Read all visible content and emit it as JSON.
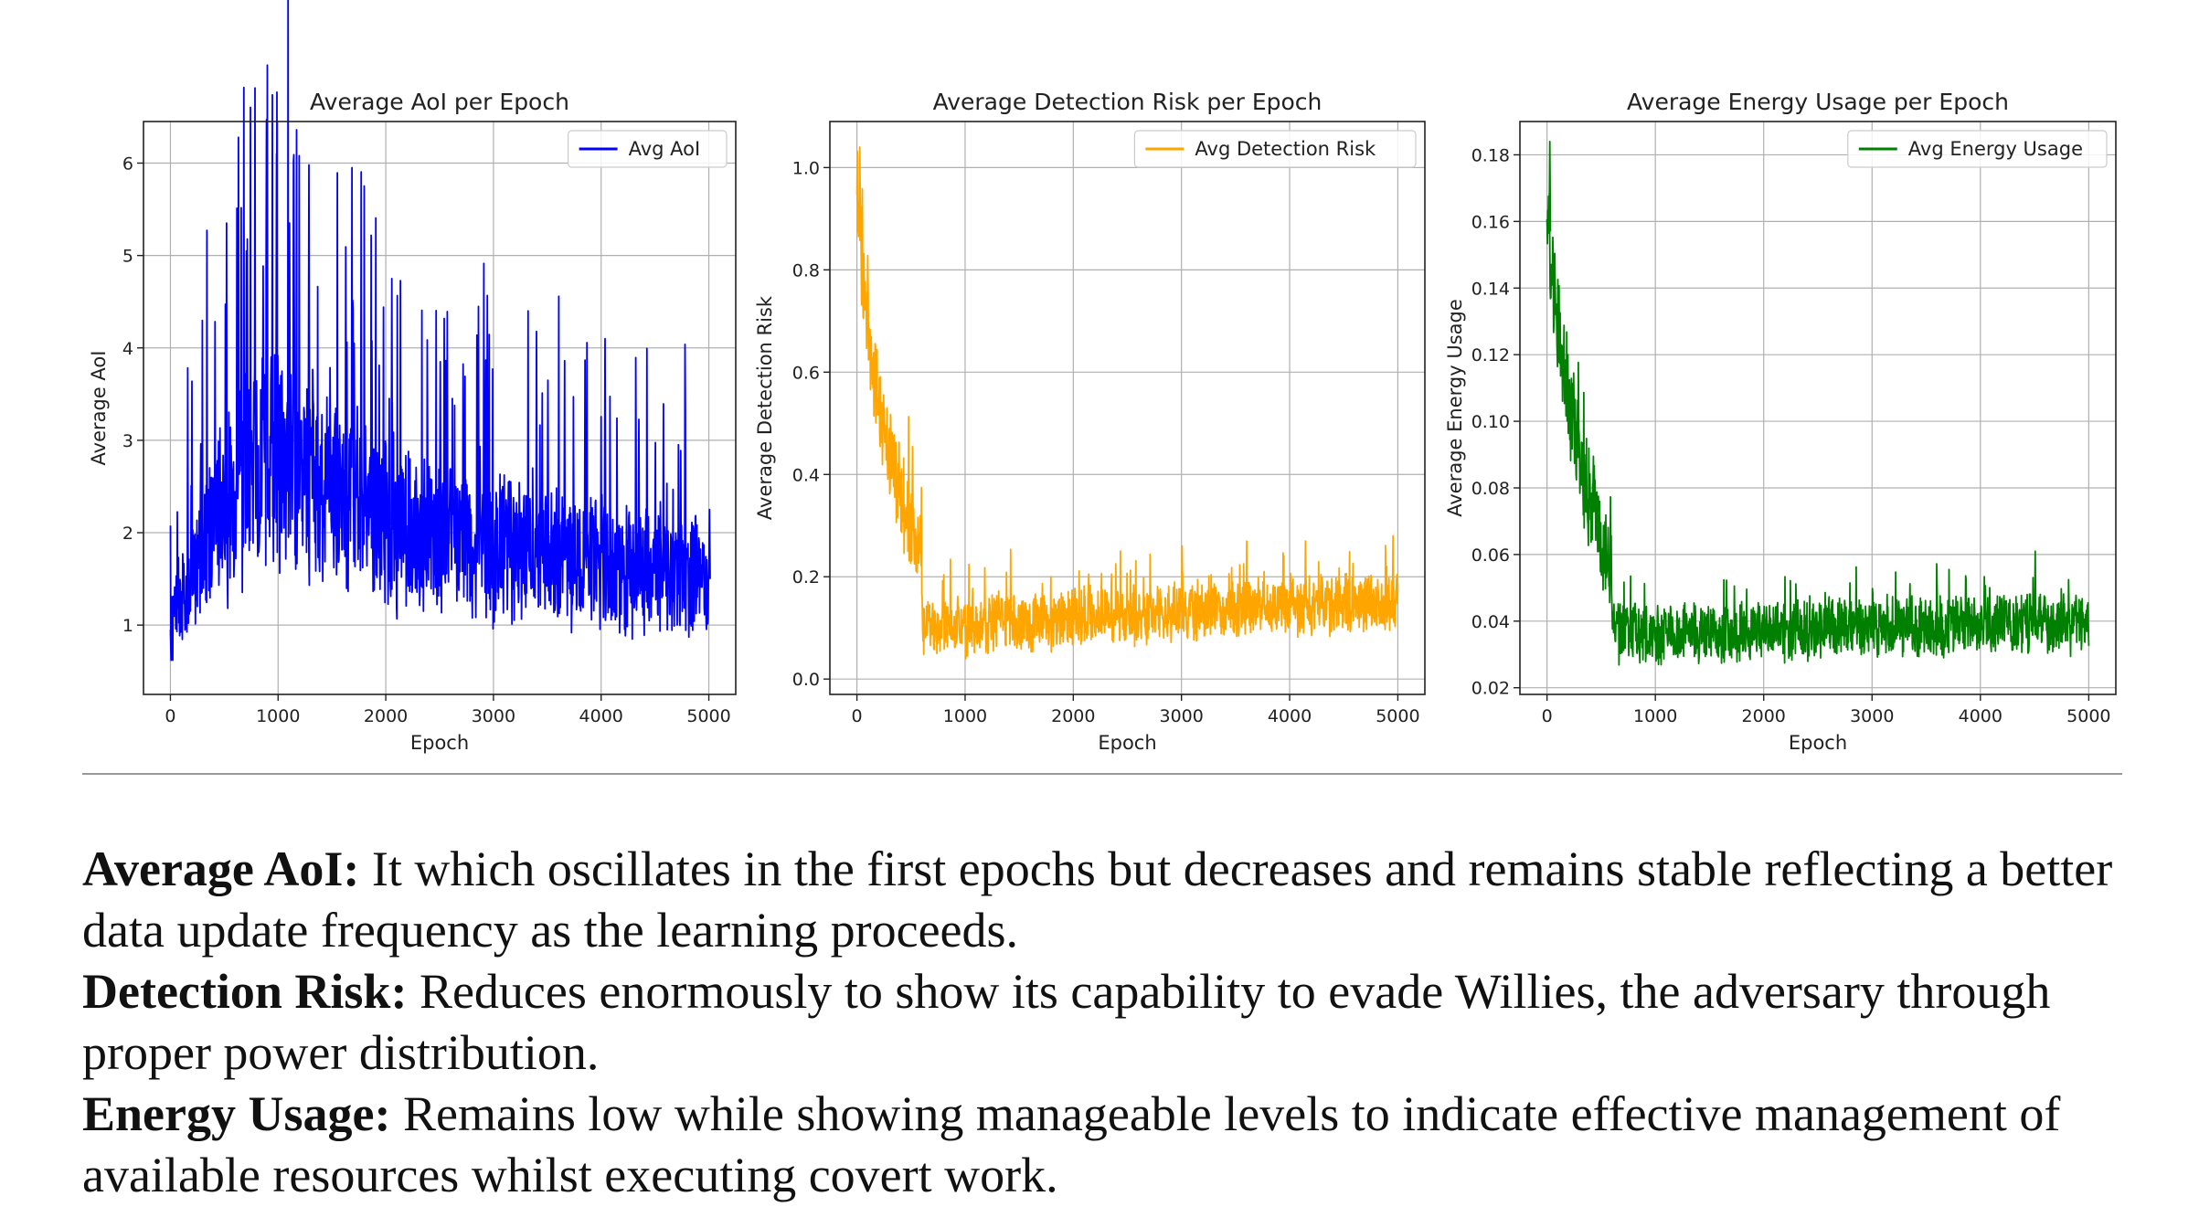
{
  "chart_data": [
    {
      "type": "line",
      "title": "Average AoI per Epoch",
      "xlabel": "Epoch",
      "ylabel": "Average AoI",
      "xlim": [
        -250,
        5250
      ],
      "ylim": [
        0.25,
        6.45
      ],
      "xticks": [
        0,
        1000,
        2000,
        3000,
        4000,
        5000
      ],
      "yticks": [
        1,
        2,
        3,
        4,
        5,
        6
      ],
      "ytick_decimals": 0,
      "grid": true,
      "legend": "top-right",
      "series": [
        {
          "name": "Avg AoI",
          "color": "#0000ff"
        }
      ],
      "trend_points": [
        [
          0,
          0.95
        ],
        [
          200,
          1.6
        ],
        [
          500,
          2.2
        ],
        [
          800,
          2.9
        ],
        [
          1000,
          2.9
        ],
        [
          1200,
          2.7
        ],
        [
          1500,
          2.4
        ],
        [
          2000,
          2.1
        ],
        [
          2500,
          1.9
        ],
        [
          3000,
          1.8
        ],
        [
          3500,
          1.75
        ],
        [
          4000,
          1.7
        ],
        [
          4500,
          1.55
        ],
        [
          5000,
          1.5
        ]
      ],
      "peaks": [
        [
          980,
          6.1
        ],
        [
          1280,
          5.98
        ],
        [
          1100,
          5.35
        ],
        [
          700,
          5.05
        ],
        [
          2050,
          4.75
        ],
        [
          4030,
          4.1
        ],
        [
          1700,
          4.05
        ],
        [
          2500,
          3.85
        ],
        [
          3500,
          3.65
        ],
        [
          5000,
          2.25
        ],
        [
          0,
          0.62
        ]
      ]
    },
    {
      "type": "line",
      "title": "Average Detection Risk per Epoch",
      "xlabel": "Epoch",
      "ylabel": "Average Detection Risk",
      "xlim": [
        -250,
        5250
      ],
      "ylim": [
        -0.03,
        1.09
      ],
      "xticks": [
        0,
        1000,
        2000,
        3000,
        4000,
        5000
      ],
      "yticks": [
        0.0,
        0.2,
        0.4,
        0.6,
        0.8,
        1.0
      ],
      "ytick_decimals": 1,
      "grid": true,
      "legend": "top-right",
      "series": [
        {
          "name": "Avg Detection Risk",
          "color": "#ffa500"
        }
      ],
      "trend_points": [
        [
          0,
          0.95
        ],
        [
          100,
          0.68
        ],
        [
          200,
          0.55
        ],
        [
          300,
          0.45
        ],
        [
          400,
          0.36
        ],
        [
          500,
          0.3
        ],
        [
          590,
          0.24
        ],
        [
          610,
          0.11
        ],
        [
          1000,
          0.105
        ],
        [
          2000,
          0.12
        ],
        [
          3000,
          0.13
        ],
        [
          4000,
          0.14
        ],
        [
          5000,
          0.15
        ]
      ],
      "peaks": [
        [
          20,
          1.04
        ],
        [
          3000,
          0.26
        ],
        [
          4950,
          0.28
        ],
        [
          1000,
          0.04
        ]
      ]
    },
    {
      "type": "line",
      "title": "Average Energy Usage per Epoch",
      "xlabel": "Epoch",
      "ylabel": "Average Energy Usage",
      "xlim": [
        -250,
        5250
      ],
      "ylim": [
        0.018,
        0.19
      ],
      "xticks": [
        0,
        1000,
        2000,
        3000,
        4000,
        5000
      ],
      "yticks": [
        0.02,
        0.04,
        0.06,
        0.08,
        0.1,
        0.12,
        0.14,
        0.16,
        0.18
      ],
      "ytick_decimals": 2,
      "grid": true,
      "legend": "top-right",
      "series": [
        {
          "name": "Avg Energy Usage",
          "color": "#008000"
        }
      ],
      "trend_points": [
        [
          0,
          0.165
        ],
        [
          100,
          0.125
        ],
        [
          200,
          0.105
        ],
        [
          300,
          0.09
        ],
        [
          400,
          0.075
        ],
        [
          500,
          0.065
        ],
        [
          590,
          0.055
        ],
        [
          610,
          0.037
        ],
        [
          1000,
          0.036
        ],
        [
          2000,
          0.037
        ],
        [
          3000,
          0.038
        ],
        [
          4000,
          0.039
        ],
        [
          5000,
          0.039
        ]
      ],
      "peaks": [
        [
          20,
          0.184
        ],
        [
          4500,
          0.061
        ],
        [
          1000,
          0.028
        ]
      ]
    }
  ],
  "caption": [
    {
      "term": "Average AoI:",
      "text": " It which oscillates in the first epochs but decreases and remains stable reflecting a better data update frequency as the learning proceeds."
    },
    {
      "term": "Detection Risk:",
      "text": " Reduces enormously to show its capability to evade Willies, the adversary through proper power distribution."
    },
    {
      "term": "Energy Usage:",
      "text": " Remains low while showing manageable levels to indicate effective management of available resources whilst executing covert work."
    }
  ]
}
